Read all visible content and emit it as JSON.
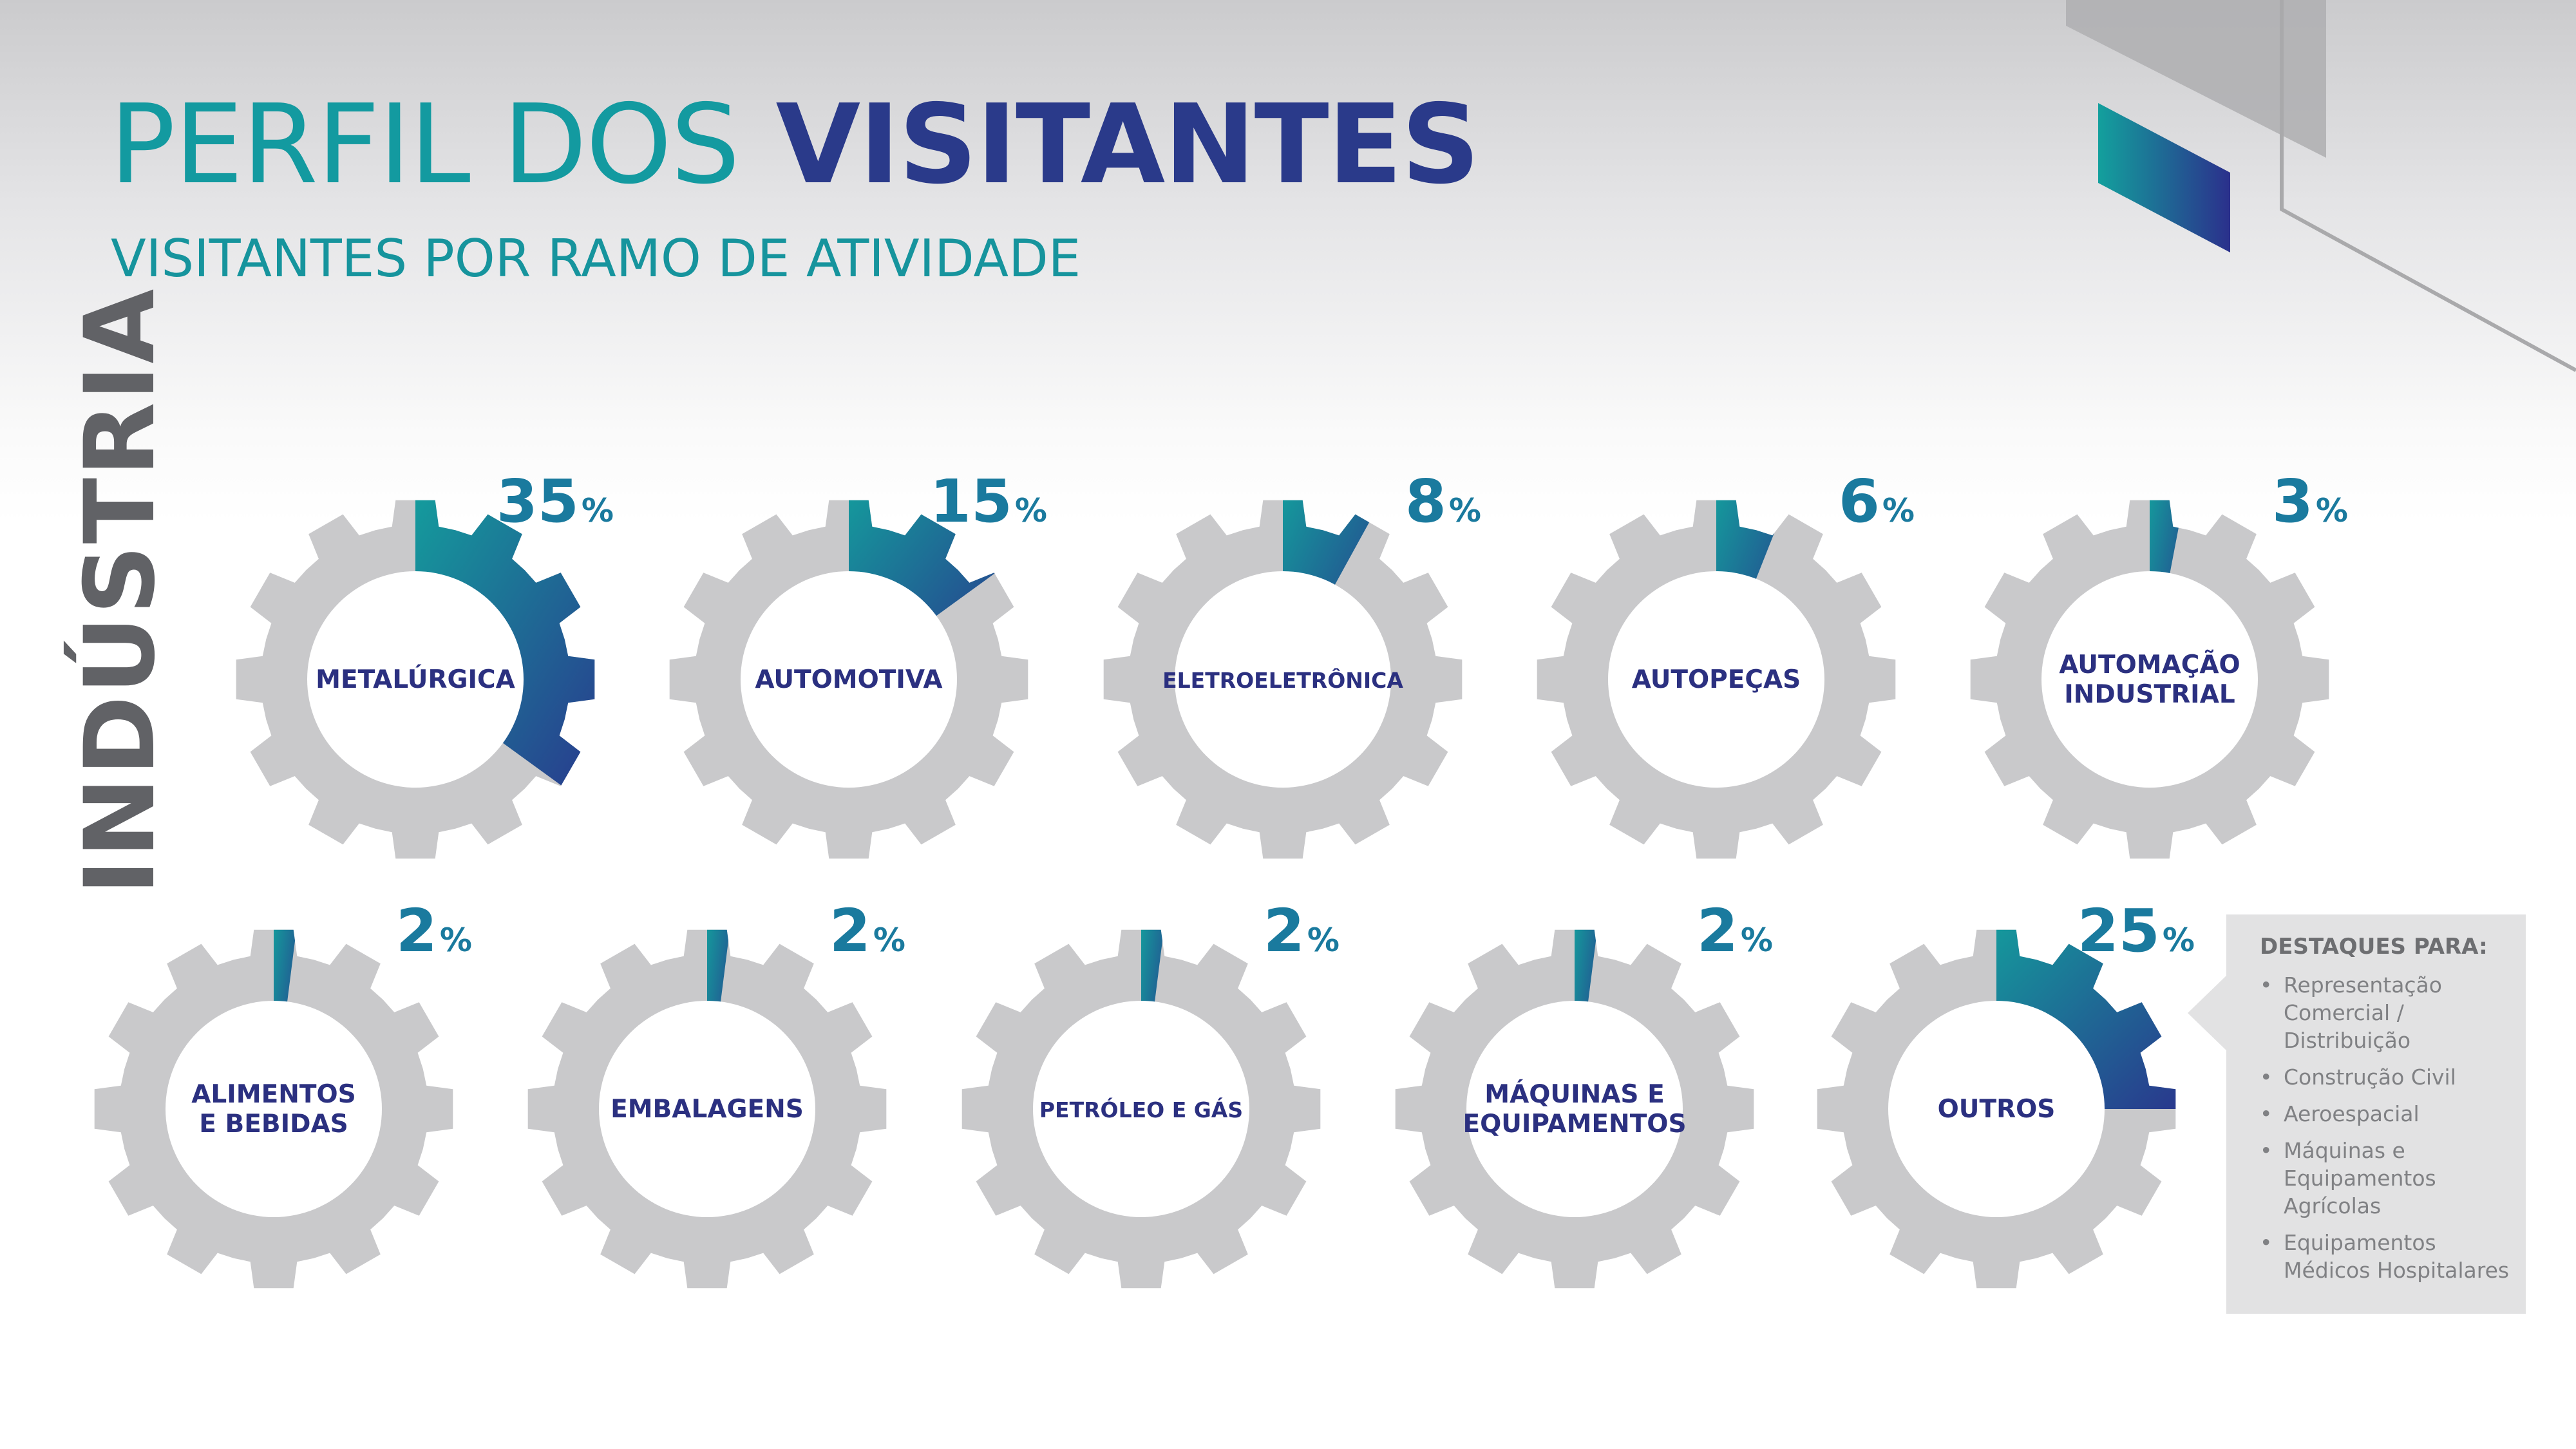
{
  "title": {
    "light": "PERFIL DOS",
    "bold": "VISITANTES"
  },
  "subtitle": "VISITANTES POR RAMO DE ATIVIDADE",
  "side_label": "INDÚSTRIA",
  "highlights": {
    "title": "DESTAQUES PARA:",
    "items": [
      "Representação Comercial / Distribuição",
      "Construção Civil",
      "Aeroespacial",
      "Máquinas e Equipamentos Agrícolas",
      "Equipamentos Médicos Hospitalares"
    ]
  },
  "colors": {
    "gear": "#c9c9cb",
    "teal": "#13a09d",
    "blue": "#2b308c",
    "value": "#1a7a9e",
    "label": "#2b3080"
  },
  "chart_data": {
    "type": "pie",
    "title": "VISITANTES POR RAMO DE ATIVIDADE",
    "unit": "%",
    "categories": [
      "METALÚRGICA",
      "AUTOMOTIVA",
      "ELETROELETRÔNICA",
      "AUTOPEÇAS",
      "AUTOMAÇÃO INDUSTRIAL",
      "ALIMENTOS E BEBIDAS",
      "EMBALAGENS",
      "PETRÓLEO E GÁS",
      "MÁQUINAS E EQUIPAMENTOS",
      "OUTROS"
    ],
    "values": [
      35,
      15,
      8,
      6,
      3,
      2,
      2,
      2,
      2,
      25
    ],
    "items": [
      {
        "label": [
          "METALÚRGICA"
        ],
        "value": 35
      },
      {
        "label": [
          "AUTOMOTIVA"
        ],
        "value": 15
      },
      {
        "label": [
          "ELETROELETRÔNICA"
        ],
        "value": 8
      },
      {
        "label": [
          "AUTOPEÇAS"
        ],
        "value": 6
      },
      {
        "label": [
          "AUTOMAÇÃO",
          "INDUSTRIAL"
        ],
        "value": 3
      },
      {
        "label": [
          "ALIMENTOS",
          "E BEBIDAS"
        ],
        "value": 2
      },
      {
        "label": [
          "EMBALAGENS"
        ],
        "value": 2
      },
      {
        "label": [
          "PETRÓLEO E GÁS"
        ],
        "value": 2
      },
      {
        "label": [
          "MÁQUINAS E",
          "EQUIPAMENTOS"
        ],
        "value": 2
      },
      {
        "label": [
          "OUTROS"
        ],
        "value": 25
      }
    ]
  }
}
